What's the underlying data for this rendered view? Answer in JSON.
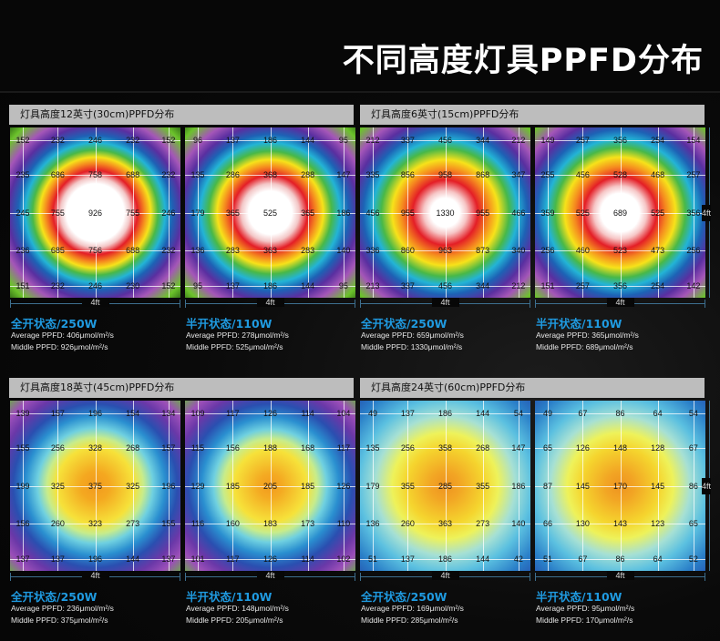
{
  "title": "不同高度灯具PPFD分布",
  "ruler_label": "4ft",
  "sections": [
    {
      "title": "灯具高度12英寸(30cm)PPFD分布",
      "panels": [
        {
          "status": "全开状态/250W",
          "average": "Average PPFD: 406μmol/m²/s",
          "middle": "Middle PPFD: 926μmol/m²/s",
          "values": [
            [
              152,
              232,
              246,
              232,
              152
            ],
            [
              235,
              686,
              758,
              688,
              232
            ],
            [
              245,
              755,
              926,
              755,
              246
            ],
            [
              236,
              685,
              756,
              688,
              232
            ],
            [
              151,
              232,
              246,
              230,
              152
            ]
          ]
        },
        {
          "status": "半开状态/110W",
          "average": "Average PPFD: 278μmol/m²/s",
          "middle": "Middle PPFD: 525μmol/m²/s",
          "values": [
            [
              96,
              137,
              186,
              144,
              95
            ],
            [
              135,
              286,
              368,
              288,
              147
            ],
            [
              179,
              365,
              525,
              365,
              186
            ],
            [
              136,
              283,
              363,
              283,
              140
            ],
            [
              95,
              137,
              186,
              144,
              95
            ]
          ]
        }
      ]
    },
    {
      "title": "灯具高度6英寸(15cm)PPFD分布",
      "panels": [
        {
          "status": "全开状态/250W",
          "average": "Average PPFD: 659μmol/m²/s",
          "middle": "Middle PPFD: 1330μmol/m²/s",
          "values": [
            [
              212,
              337,
              456,
              344,
              212
            ],
            [
              335,
              856,
              958,
              868,
              347
            ],
            [
              456,
              955,
              1330,
              955,
              466
            ],
            [
              336,
              860,
              963,
              873,
              340
            ],
            [
              213,
              337,
              456,
              344,
              212
            ]
          ]
        },
        {
          "status": "半开状态/110W",
          "average": "Average PPFD: 365μmol/m²/s",
          "middle": "Middle PPFD: 689μmol/m²/s",
          "values": [
            [
              149,
              257,
              356,
              254,
              154
            ],
            [
              255,
              456,
              528,
              468,
              257
            ],
            [
              359,
              525,
              689,
              525,
              356
            ],
            [
              256,
              460,
              523,
              473,
              256
            ],
            [
              151,
              257,
              356,
              254,
              142
            ]
          ]
        }
      ]
    },
    {
      "title": "灯具高度18英寸(45cm)PPFD分布",
      "panels": [
        {
          "status": "全开状态/250W",
          "average": "Average PPFD: 236μmol/m²/s",
          "middle": "Middle PPFD: 375μmol/m²/s",
          "values": [
            [
              139,
              157,
              196,
              154,
              134
            ],
            [
              155,
              256,
              328,
              268,
              157
            ],
            [
              199,
              325,
              375,
              325,
              196
            ],
            [
              156,
              260,
              323,
              273,
              155
            ],
            [
              137,
              137,
              196,
              144,
              137
            ]
          ]
        },
        {
          "status": "半开状态/110W",
          "average": "Average PPFD: 148μmol/m²/s",
          "middle": "Middle PPFD: 205μmol/m²/s",
          "values": [
            [
              109,
              117,
              126,
              114,
              104
            ],
            [
              115,
              156,
              188,
              168,
              117
            ],
            [
              129,
              185,
              205,
              185,
              126
            ],
            [
              116,
              160,
              183,
              173,
              110
            ],
            [
              101,
              117,
              126,
              114,
              102
            ]
          ]
        }
      ]
    },
    {
      "title": "灯具高度24英寸(60cm)PPFD分布",
      "panels": [
        {
          "status": "全开状态/250W",
          "average": "Average PPFD: 169μmol/m²/s",
          "middle": "Middle PPFD: 285μmol/m²/s",
          "values": [
            [
              49,
              137,
              186,
              144,
              54
            ],
            [
              135,
              256,
              358,
              268,
              147
            ],
            [
              179,
              355,
              285,
              355,
              186
            ],
            [
              136,
              260,
              363,
              273,
              140
            ],
            [
              51,
              137,
              186,
              144,
              42
            ]
          ]
        },
        {
          "status": "半开状态/110W",
          "average": "Average PPFD: 95μmol/m²/s",
          "middle": "Middle PPFD: 170μmol/m²/s",
          "values": [
            [
              49,
              67,
              86,
              64,
              54
            ],
            [
              65,
              126,
              148,
              128,
              67
            ],
            [
              87,
              145,
              170,
              145,
              86
            ],
            [
              66,
              130,
              143,
              123,
              65
            ],
            [
              51,
              67,
              86,
              64,
              52
            ]
          ]
        }
      ]
    }
  ]
}
